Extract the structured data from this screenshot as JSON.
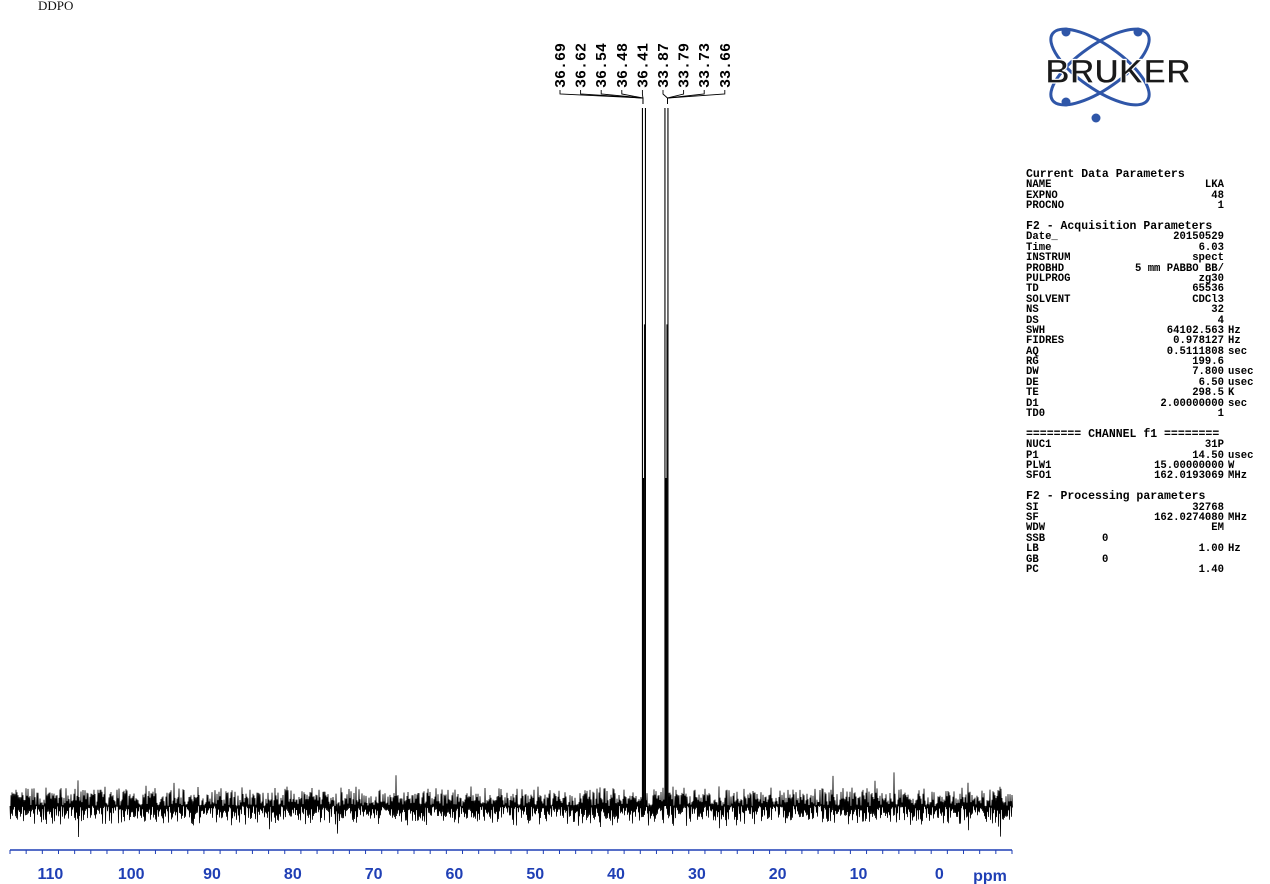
{
  "sample_label": "DDPO",
  "logo_text": "BRUKER",
  "colors": {
    "axis": "#1f3fb5",
    "spectrum": "#000000",
    "logo_orbit": "#2f56a8",
    "logo_text": "#1a1a1a"
  },
  "chart_data": {
    "type": "line",
    "title": "DDPO",
    "xlabel": "ppm",
    "xlim": [
      115,
      -9
    ],
    "x_direction": "reversed",
    "x_ticks": [
      110,
      100,
      90,
      80,
      70,
      60,
      50,
      40,
      30,
      20,
      10,
      0
    ],
    "x_tick_labels": [
      "110",
      "100",
      "90",
      "80",
      "70",
      "60",
      "50",
      "40",
      "30",
      "20",
      "10",
      "0"
    ],
    "y_relative_range": [
      0,
      1
    ],
    "baseline_noise_fraction": 0.06,
    "peaks": [
      {
        "group": "A",
        "ppm": 36.69
      },
      {
        "group": "A",
        "ppm": 36.62
      },
      {
        "group": "A",
        "ppm": 36.54
      },
      {
        "group": "A",
        "ppm": 36.48
      },
      {
        "group": "A",
        "ppm": 36.41
      },
      {
        "group": "B",
        "ppm": 33.87
      },
      {
        "group": "B",
        "ppm": 33.79
      },
      {
        "group": "B",
        "ppm": 33.73
      },
      {
        "group": "B",
        "ppm": 33.66
      }
    ],
    "peak_labels": [
      "36.69",
      "36.62",
      "36.54",
      "36.48",
      "36.41",
      "33.87",
      "33.79",
      "33.73",
      "33.66"
    ],
    "grid": false,
    "legend": "none"
  },
  "params": {
    "sections": [
      {
        "header": "Current Data Parameters",
        "rows": [
          {
            "k": "NAME",
            "v": "LKA",
            "u": ""
          },
          {
            "k": "EXPNO",
            "v": "48",
            "u": ""
          },
          {
            "k": "PROCNO",
            "v": "1",
            "u": ""
          }
        ]
      },
      {
        "header": "F2 - Acquisition Parameters",
        "rows": [
          {
            "k": "Date_",
            "v": "20150529",
            "u": ""
          },
          {
            "k": "Time",
            "v": "6.03",
            "u": ""
          },
          {
            "k": "INSTRUM",
            "v": "spect",
            "u": ""
          },
          {
            "k": "PROBHD",
            "v": "5 mm PABBO BB/",
            "u": ""
          },
          {
            "k": "PULPROG",
            "v": "zg30",
            "u": ""
          },
          {
            "k": "TD",
            "v": "65536",
            "u": ""
          },
          {
            "k": "SOLVENT",
            "v": "CDCl3",
            "u": ""
          },
          {
            "k": "NS",
            "v": "32",
            "u": ""
          },
          {
            "k": "DS",
            "v": "4",
            "u": ""
          },
          {
            "k": "SWH",
            "v": "64102.563",
            "u": "Hz"
          },
          {
            "k": "FIDRES",
            "v": "0.978127",
            "u": "Hz"
          },
          {
            "k": "AQ",
            "v": "0.5111808",
            "u": "sec"
          },
          {
            "k": "RG",
            "v": "199.6",
            "u": ""
          },
          {
            "k": "DW",
            "v": "7.800",
            "u": "usec"
          },
          {
            "k": "DE",
            "v": "6.50",
            "u": "usec"
          },
          {
            "k": "TE",
            "v": "298.5",
            "u": "K"
          },
          {
            "k": "D1",
            "v": "2.00000000",
            "u": "sec"
          },
          {
            "k": "TD0",
            "v": "1",
            "u": ""
          }
        ]
      },
      {
        "header": "======== CHANNEL f1 ========",
        "rows": [
          {
            "k": "NUC1",
            "v": "31P",
            "u": ""
          },
          {
            "k": "P1",
            "v": "14.50",
            "u": "usec"
          },
          {
            "k": "PLW1",
            "v": "15.00000000",
            "u": "W"
          },
          {
            "k": "SFO1",
            "v": "162.0193069",
            "u": "MHz"
          }
        ]
      },
      {
        "header": "F2 - Processing parameters",
        "rows": [
          {
            "k": "SI",
            "v": "32768",
            "u": ""
          },
          {
            "k": "SF",
            "v": "162.0274080",
            "u": "MHz"
          },
          {
            "k": "WDW",
            "v": "EM",
            "u": ""
          },
          {
            "k": "SSB",
            "v": "0",
            "u": "",
            "left": true
          },
          {
            "k": "LB",
            "v": "1.00",
            "u": "Hz"
          },
          {
            "k": "GB",
            "v": "0",
            "u": "",
            "left": true
          },
          {
            "k": "PC",
            "v": "1.40",
            "u": ""
          }
        ]
      }
    ]
  }
}
